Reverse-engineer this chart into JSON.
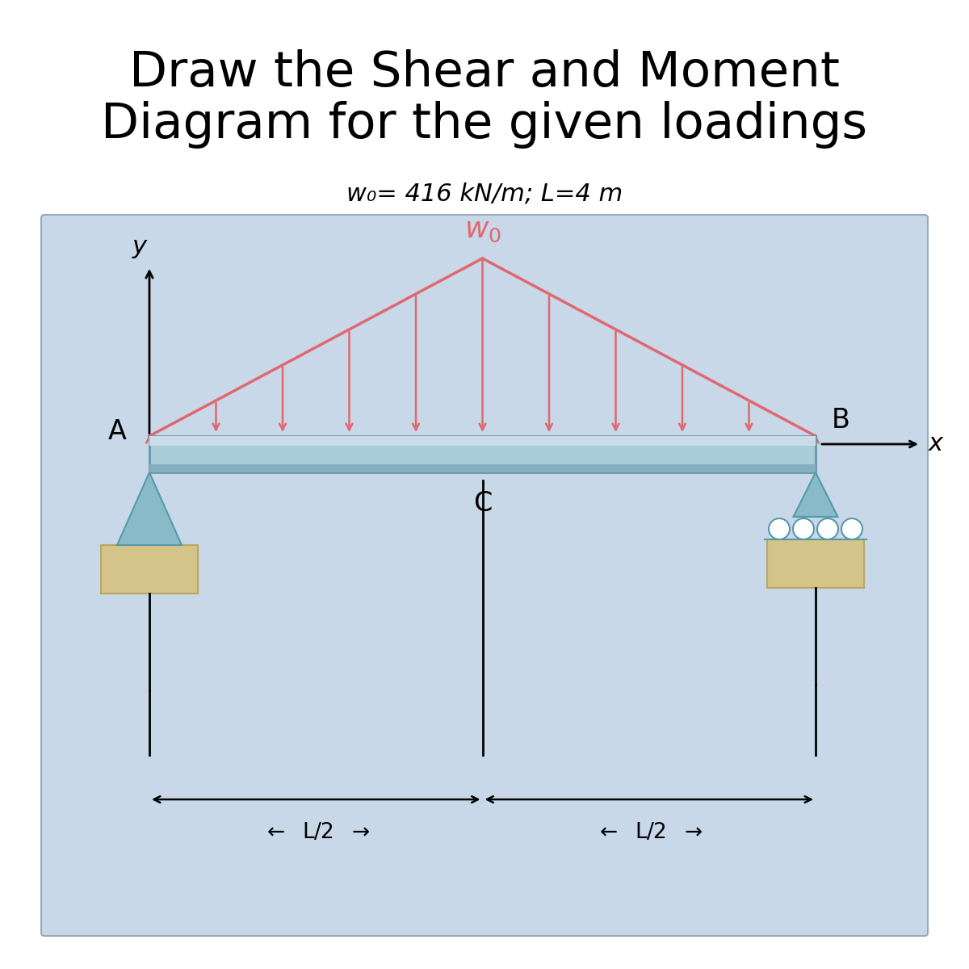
{
  "title_line1": "Draw the Shear and Moment",
  "title_line2": "Diagram for the given loadings",
  "subtitle": "w₀= 416 kN/m; L=4 m",
  "title_fontsize": 44,
  "subtitle_fontsize": 22,
  "bg_color": "#ffffff",
  "diagram_bg_color": "#c8d8e8",
  "beam_color": "#a8ccd8",
  "beam_edge_color": "#6699aa",
  "load_color": "#e06870",
  "load_fill_color": "#f0a8a8",
  "support_tri_color": "#88bbc8",
  "support_tri_edge": "#5599aa",
  "roller_color": "#88bbc8",
  "roller_edge": "#5599aa",
  "wall_color": "#d4c48a",
  "wall_edge": "#b8a860",
  "label_A": "A",
  "label_B": "B",
  "label_C": "C",
  "label_x": "x",
  "label_y": "y",
  "label_w0": "$w_0$",
  "n_arrows": 11
}
